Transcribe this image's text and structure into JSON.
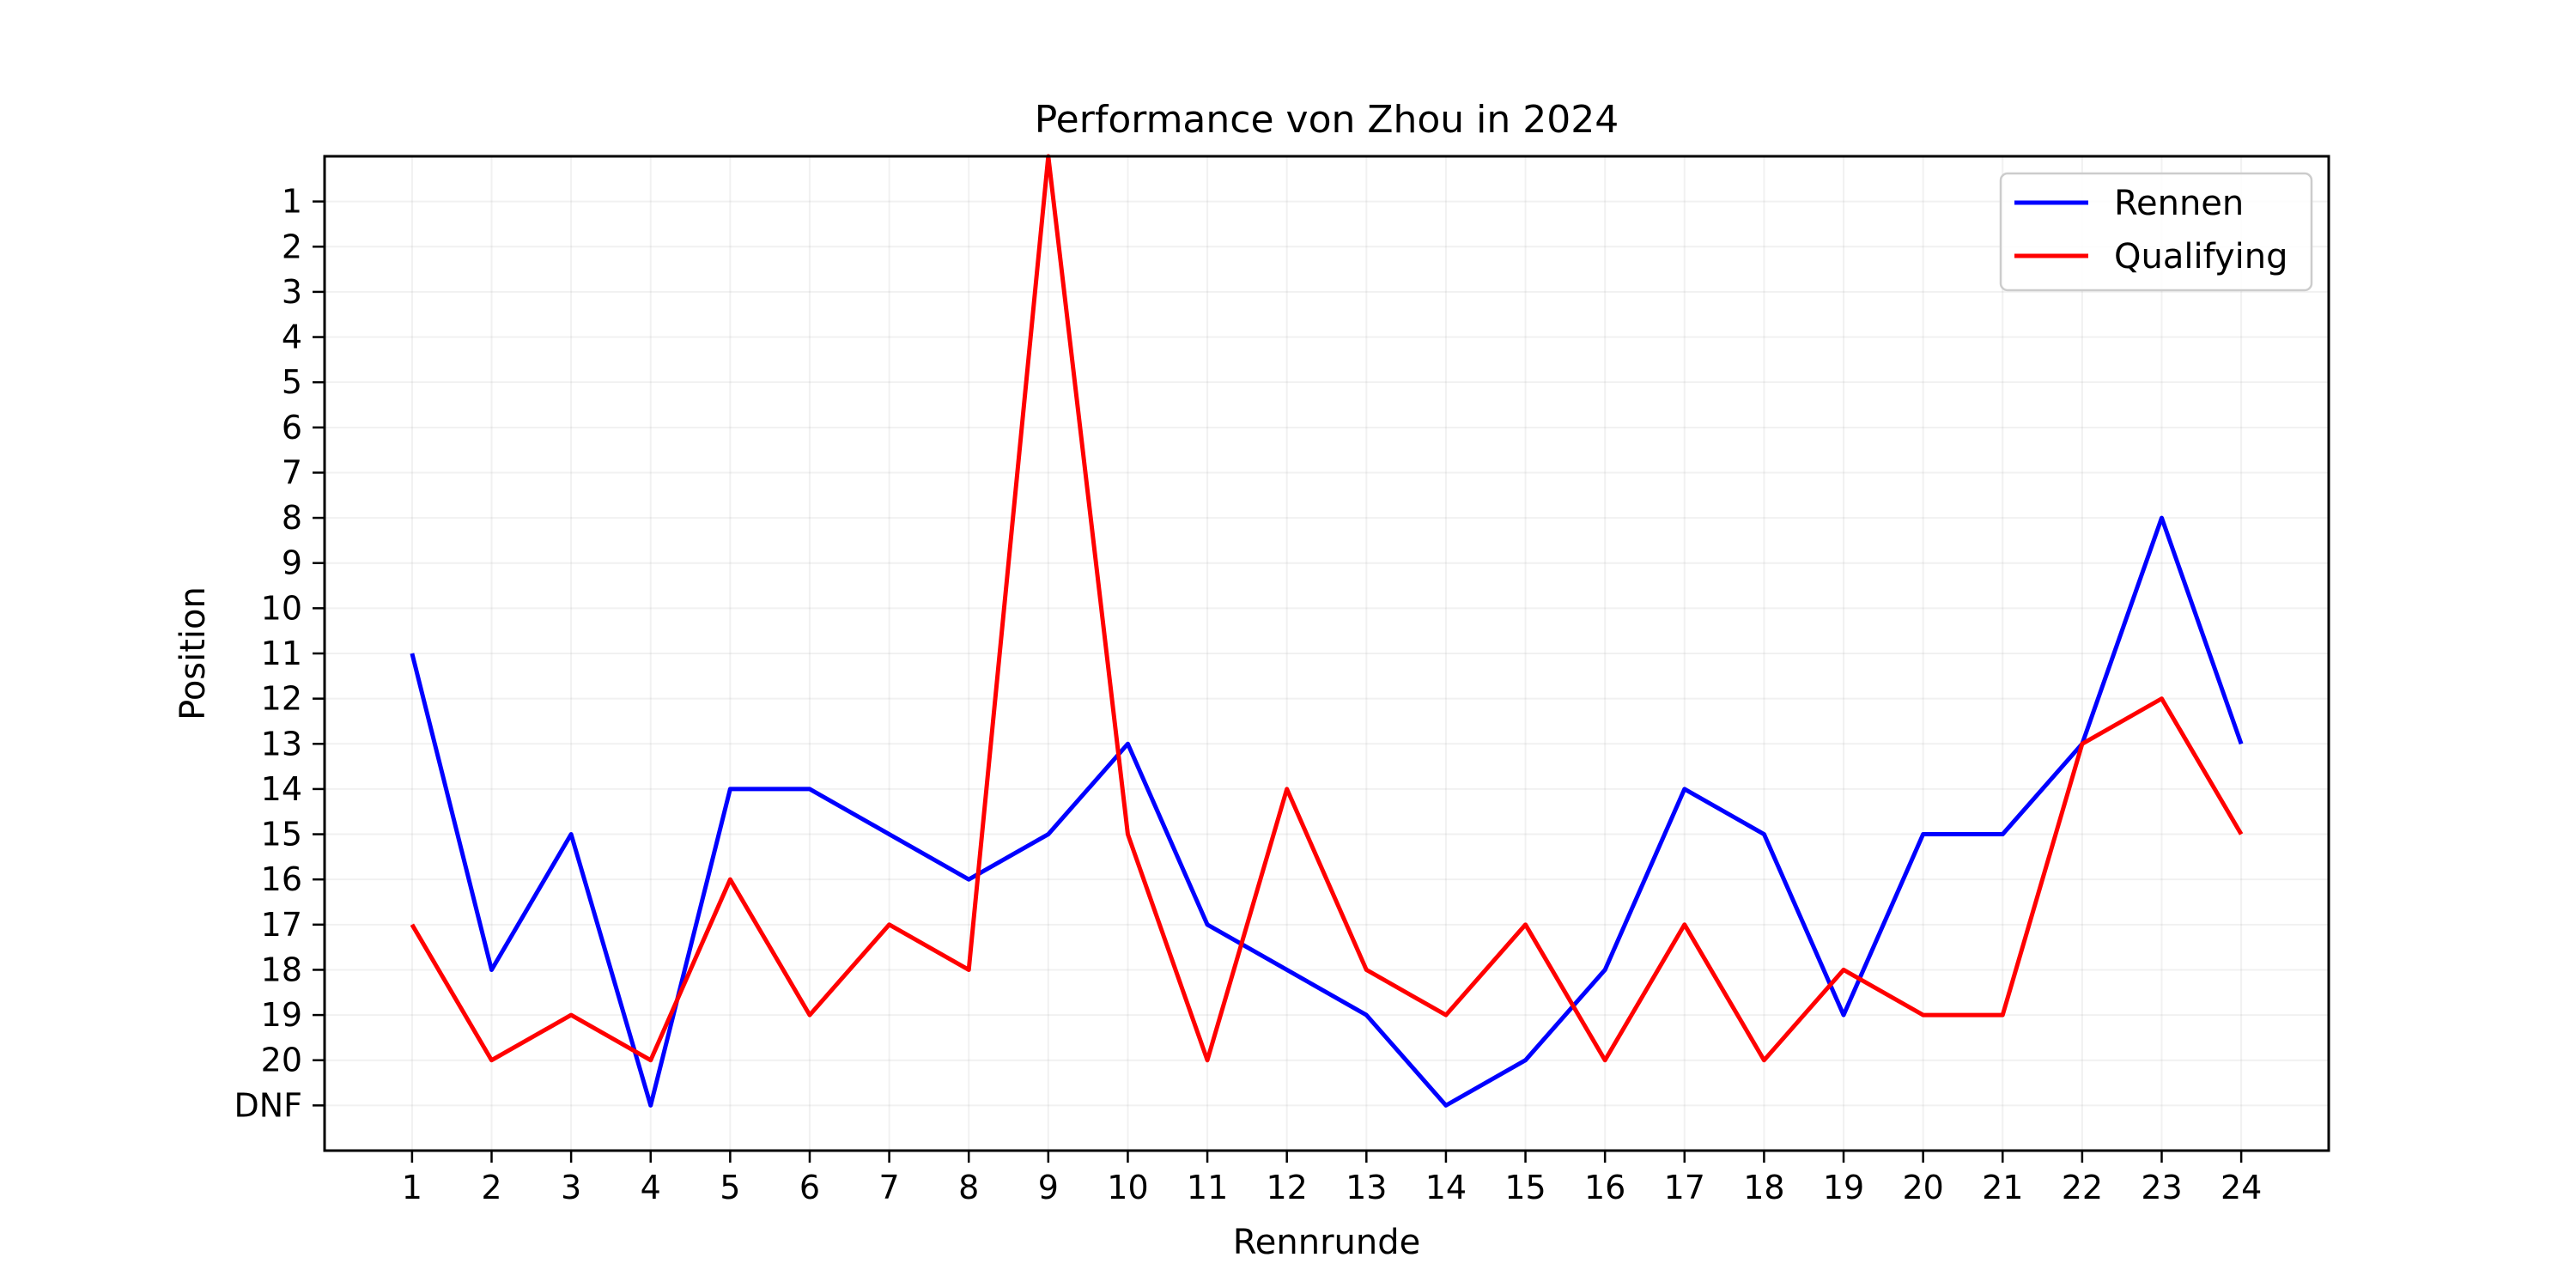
{
  "chart_data": {
    "type": "line",
    "title": "Performance von Zhou in 2024",
    "xlabel": "Rennrunde",
    "ylabel": "Position",
    "x": [
      1,
      2,
      3,
      4,
      5,
      6,
      7,
      8,
      9,
      10,
      11,
      12,
      13,
      14,
      15,
      16,
      17,
      18,
      19,
      20,
      21,
      22,
      23,
      24
    ],
    "y_ticks": [
      1,
      2,
      3,
      4,
      5,
      6,
      7,
      8,
      9,
      10,
      11,
      12,
      13,
      14,
      15,
      16,
      17,
      18,
      19,
      20,
      21
    ],
    "y_tick_labels": [
      "1",
      "2",
      "3",
      "4",
      "5",
      "6",
      "7",
      "8",
      "9",
      "10",
      "11",
      "12",
      "13",
      "14",
      "15",
      "16",
      "17",
      "18",
      "19",
      "20",
      "DNF"
    ],
    "ylim": [
      22,
      0
    ],
    "xlim": [
      -0.1,
      25.1
    ],
    "y_inverted": true,
    "grid": true,
    "legend_position": "top-right",
    "series": [
      {
        "name": "Rennen",
        "color": "#0000ff",
        "values": [
          11,
          18,
          15,
          21,
          14,
          14,
          15,
          16,
          15,
          13,
          17,
          18,
          19,
          21,
          20,
          18,
          14,
          15,
          19,
          15,
          15,
          13,
          8,
          13
        ]
      },
      {
        "name": "Qualifying",
        "color": "#ff0000",
        "values": [
          17,
          20,
          19,
          20,
          16,
          19,
          17,
          18,
          0,
          15,
          20,
          14,
          18,
          19,
          17,
          20,
          17,
          20,
          18,
          19,
          19,
          13,
          12,
          15
        ]
      }
    ]
  }
}
